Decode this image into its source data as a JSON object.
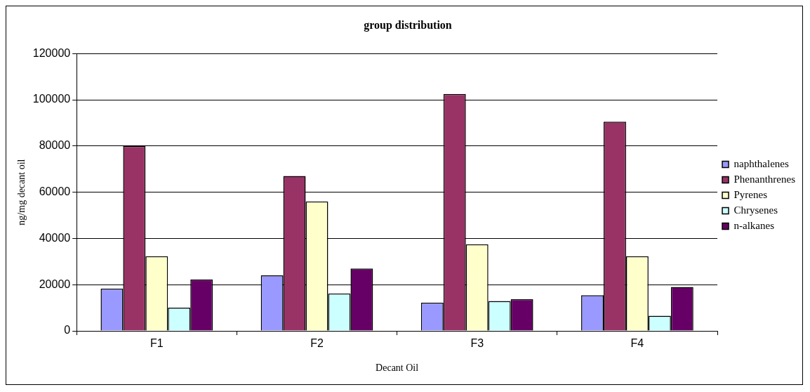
{
  "chart_data": {
    "type": "bar",
    "title": "group distribution",
    "xlabel": "Decant Oil",
    "ylabel": "ng/mg decant oil",
    "categories": [
      "F1",
      "F2",
      "F3",
      "F4"
    ],
    "series": [
      {
        "name": "naphthalenes",
        "color": "#9999ff",
        "values": [
          18300,
          24000,
          12200,
          15400
        ]
      },
      {
        "name": "Phenanthrenes",
        "color": "#993366",
        "values": [
          80000,
          67000,
          102500,
          90500
        ]
      },
      {
        "name": "Pyrenes",
        "color": "#ffffcc",
        "values": [
          32300,
          56000,
          37500,
          32300
        ]
      },
      {
        "name": "Chrysenes",
        "color": "#ccffff",
        "values": [
          10000,
          16200,
          12900,
          6500
        ]
      },
      {
        "name": "n-alkanes",
        "color": "#660066",
        "values": [
          22300,
          27000,
          13700,
          19000
        ]
      }
    ],
    "ylim": [
      0,
      120000
    ],
    "yticks": [
      0,
      20000,
      40000,
      60000,
      80000,
      100000,
      120000
    ],
    "grid": "y",
    "legend": "right"
  }
}
